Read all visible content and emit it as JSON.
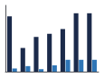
{
  "chart_data": {
    "type": "bar",
    "categories": [
      null,
      null,
      null,
      null,
      null,
      null,
      null
    ],
    "series": [
      {
        "color": "#1b2a4a",
        "values": [
          3.5,
          1.5,
          2.2,
          2.4,
          2.7,
          3.7,
          3.7
        ]
      },
      {
        "color": "#2e75b6",
        "values": [
          0.2,
          0.35,
          0.15,
          0.4,
          0.75,
          0.75,
          0.75
        ]
      }
    ],
    "ylim": [
      0,
      4.2
    ],
    "grid": false,
    "tick_labels": false
  }
}
